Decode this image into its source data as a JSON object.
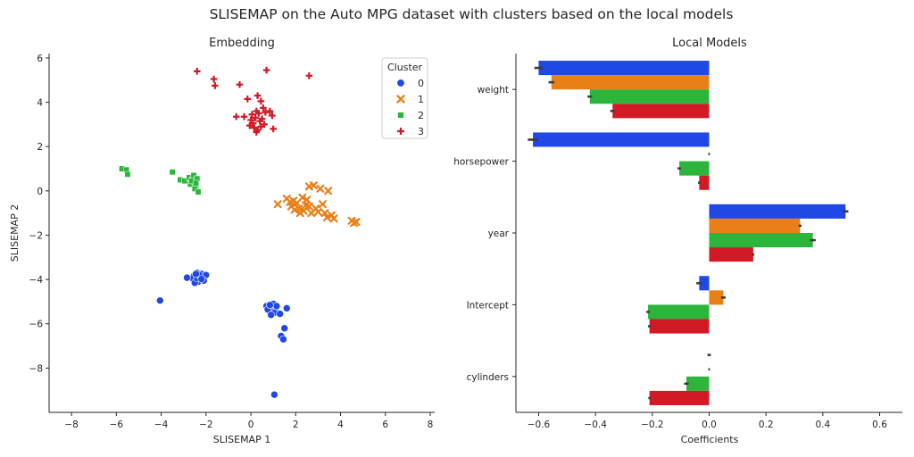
{
  "figure": {
    "title": "SLISEMAP on the Auto MPG dataset with clusters based on the local models"
  },
  "colors": {
    "cluster_0": "#1f48e6",
    "cluster_1": "#e87f17",
    "cluster_2": "#2bb63b",
    "cluster_3": "#d11a26",
    "error_bar": "#3c3c3c"
  },
  "chart_data": [
    {
      "type": "scatter",
      "title": "Embedding",
      "xlabel": "SLISEMAP 1",
      "ylabel": "SLISEMAP 2",
      "xlim": [
        -9,
        8.2
      ],
      "ylim": [
        -10,
        6.2
      ],
      "xticks": [
        -8,
        -6,
        -4,
        -2,
        0,
        2,
        4,
        6,
        8
      ],
      "yticks": [
        -8,
        -6,
        -4,
        -2,
        0,
        2,
        4,
        6
      ],
      "xtick_labels": [
        "−8",
        "−6",
        "−4",
        "−2",
        "0",
        "2",
        "4",
        "6",
        "8"
      ],
      "ytick_labels": [
        "−8",
        "−6",
        "−4",
        "−2",
        "0",
        "2",
        "4",
        "6"
      ],
      "grid": false,
      "legend": {
        "title": "Cluster",
        "placement": "top-right",
        "entries": [
          {
            "label": "0",
            "marker": "circle"
          },
          {
            "label": "1",
            "marker": "x"
          },
          {
            "label": "2",
            "marker": "square"
          },
          {
            "label": "3",
            "marker": "plus"
          }
        ]
      },
      "series": [
        {
          "name": "0",
          "marker": "circle",
          "points": [
            [
              -2.55,
              -3.85
            ],
            [
              -2.4,
              -3.7
            ],
            [
              -2.3,
              -3.9
            ],
            [
              -2.45,
              -4.05
            ],
            [
              -2.2,
              -3.75
            ],
            [
              -2.35,
              -4.1
            ],
            [
              -2.15,
              -4.0
            ],
            [
              -2.6,
              -3.95
            ],
            [
              -2.5,
              -4.15
            ],
            [
              -2.25,
              -3.85
            ],
            [
              -2.0,
              -3.8
            ],
            [
              -2.1,
              -4.05
            ],
            [
              -2.4,
              -3.95
            ],
            [
              -2.3,
              -3.8
            ],
            [
              -2.85,
              -3.92
            ],
            [
              -2.2,
              -3.98
            ],
            [
              -2.45,
              -3.75
            ],
            [
              -4.05,
              -4.95
            ],
            [
              0.7,
              -5.2
            ],
            [
              0.9,
              -5.25
            ],
            [
              1.1,
              -5.3
            ],
            [
              0.8,
              -5.4
            ],
            [
              1.0,
              -5.1
            ],
            [
              0.95,
              -5.45
            ],
            [
              0.75,
              -5.35
            ],
            [
              1.15,
              -5.2
            ],
            [
              0.85,
              -5.15
            ],
            [
              1.05,
              -5.5
            ],
            [
              0.9,
              -5.6
            ],
            [
              1.6,
              -5.3
            ],
            [
              1.5,
              -6.2
            ],
            [
              1.35,
              -6.55
            ],
            [
              1.45,
              -6.7
            ],
            [
              1.3,
              -5.55
            ],
            [
              1.05,
              -9.2
            ]
          ]
        },
        {
          "name": "1",
          "marker": "x",
          "points": [
            [
              1.2,
              -0.6
            ],
            [
              1.6,
              -0.35
            ],
            [
              1.8,
              -0.7
            ],
            [
              1.75,
              -0.5
            ],
            [
              1.95,
              -0.85
            ],
            [
              2.05,
              -0.55
            ],
            [
              2.15,
              -0.8
            ],
            [
              2.2,
              -1.0
            ],
            [
              2.3,
              -0.3
            ],
            [
              2.35,
              -0.9
            ],
            [
              2.45,
              -0.65
            ],
            [
              2.6,
              0.2
            ],
            [
              2.8,
              0.25
            ],
            [
              2.6,
              -0.7
            ],
            [
              2.7,
              -1.0
            ],
            [
              2.9,
              -0.8
            ],
            [
              3.0,
              -0.95
            ],
            [
              3.1,
              0.1
            ],
            [
              3.2,
              -0.6
            ],
            [
              3.3,
              -1.0
            ],
            [
              3.45,
              0.0
            ],
            [
              3.4,
              -1.2
            ],
            [
              3.6,
              -1.1
            ],
            [
              3.7,
              -1.25
            ],
            [
              4.5,
              -1.35
            ],
            [
              4.6,
              -1.45
            ],
            [
              4.7,
              -1.4
            ],
            [
              2.5,
              -0.4
            ],
            [
              1.9,
              -0.45
            ]
          ]
        },
        {
          "name": "2",
          "marker": "square",
          "points": [
            [
              -5.75,
              1.0
            ],
            [
              -5.55,
              0.95
            ],
            [
              -5.5,
              0.75
            ],
            [
              -3.5,
              0.85
            ],
            [
              -3.15,
              0.5
            ],
            [
              -2.95,
              0.45
            ],
            [
              -2.75,
              0.6
            ],
            [
              -2.7,
              0.3
            ],
            [
              -2.6,
              0.5
            ],
            [
              -2.55,
              0.7
            ],
            [
              -2.5,
              0.4
            ],
            [
              -2.45,
              0.2
            ],
            [
              -2.4,
              0.55
            ],
            [
              -2.5,
              0.1
            ],
            [
              -2.35,
              -0.05
            ],
            [
              -2.65,
              0.45
            ],
            [
              -2.45,
              0.35
            ]
          ]
        },
        {
          "name": "3",
          "marker": "plus",
          "points": [
            [
              -2.4,
              5.4
            ],
            [
              -1.65,
              5.05
            ],
            [
              -1.6,
              4.75
            ],
            [
              -0.5,
              4.8
            ],
            [
              0.7,
              5.45
            ],
            [
              2.6,
              5.2
            ],
            [
              -0.15,
              4.15
            ],
            [
              0.3,
              4.3
            ],
            [
              0.45,
              4.05
            ],
            [
              0.55,
              3.75
            ],
            [
              0.25,
              3.6
            ],
            [
              -0.65,
              3.35
            ],
            [
              -0.3,
              3.35
            ],
            [
              0.05,
              3.45
            ],
            [
              0.2,
              3.3
            ],
            [
              0.35,
              3.5
            ],
            [
              0.5,
              3.25
            ],
            [
              0.1,
              3.05
            ],
            [
              -0.05,
              2.95
            ],
            [
              0.15,
              2.85
            ],
            [
              0.3,
              2.75
            ],
            [
              0.45,
              2.9
            ],
            [
              0.85,
              3.6
            ],
            [
              0.95,
              3.4
            ],
            [
              0.6,
              3.0
            ],
            [
              1.0,
              2.8
            ],
            [
              0.25,
              2.65
            ],
            [
              0.4,
              3.15
            ],
            [
              0.0,
              3.2
            ],
            [
              0.65,
              3.55
            ]
          ]
        }
      ]
    },
    {
      "type": "bar",
      "orientation": "horizontal",
      "title": "Local Models",
      "xlabel": "Coefficients",
      "ylabel": "",
      "xlim": [
        -0.68,
        0.68
      ],
      "xticks": [
        -0.6,
        -0.4,
        -0.2,
        0.0,
        0.2,
        0.4,
        0.6
      ],
      "xtick_labels": [
        "−0.6",
        "−0.4",
        "−0.2",
        "0.0",
        "0.2",
        "0.4",
        "0.6"
      ],
      "grid": false,
      "categories": [
        "weight",
        "horsepower",
        "year",
        "Intercept",
        "cylinders"
      ],
      "series": [
        {
          "name": "0",
          "values": [
            -0.6,
            -0.62,
            0.48,
            -0.035,
            0.0
          ],
          "ci": [
            0.015,
            0.018,
            0.01,
            0.01,
            0.006
          ]
        },
        {
          "name": "1",
          "values": [
            -0.555,
            0.0,
            0.32,
            0.05,
            0.0
          ],
          "ci": [
            0.01,
            0.003,
            0.005,
            0.008,
            0.003
          ]
        },
        {
          "name": "2",
          "values": [
            -0.42,
            -0.105,
            0.365,
            -0.215,
            -0.08
          ],
          "ci": [
            0.008,
            0.006,
            0.01,
            0.006,
            0.008
          ]
        },
        {
          "name": "3",
          "values": [
            -0.34,
            -0.035,
            0.155,
            -0.21,
            -0.21
          ],
          "ci": [
            0.008,
            0.004,
            0.004,
            0.005,
            0.004
          ]
        }
      ]
    }
  ]
}
